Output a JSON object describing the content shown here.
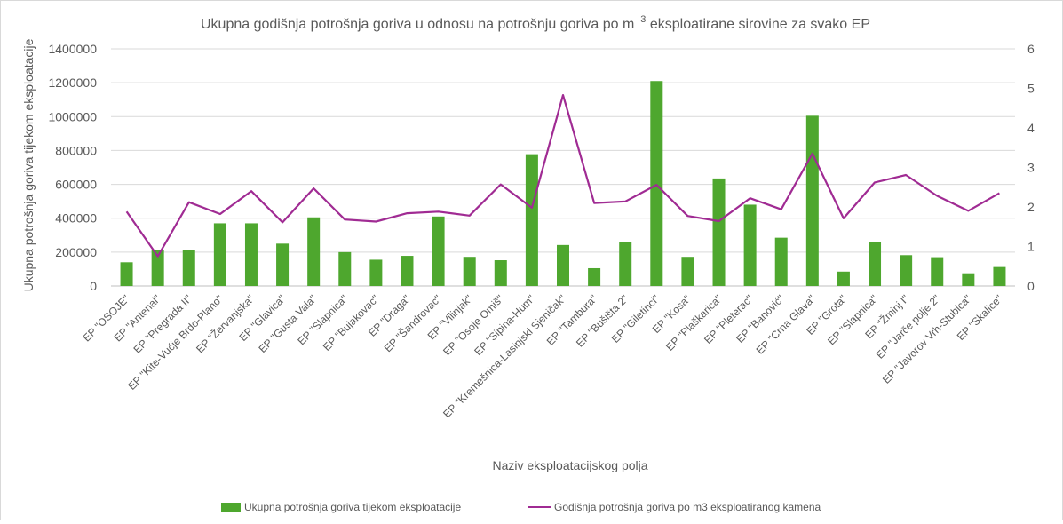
{
  "chart_data": {
    "type": "bar",
    "title": "Ukupna godišnja potrošnja goriva u odnosu na potrošnju goriva po m",
    "title_superscript": "3",
    "title_suffix": " eksploatirane sirovine za svako EP",
    "xlabel": "Naziv eksploatacijskog polja",
    "ylabel": "Ukupna potrošnja goriva tijekom eksploatacije",
    "ylim": [
      0,
      1400000
    ],
    "y2lim": [
      0,
      6
    ],
    "yticks": [
      "0",
      "200000",
      "400000",
      "600000",
      "800000",
      "1000000",
      "1200000",
      "1400000"
    ],
    "y2ticks": [
      "0",
      "1",
      "2",
      "3",
      "4",
      "5",
      "6"
    ],
    "grid": true,
    "legend_position": "bottom",
    "categories": [
      "EP \"OSOJE\"",
      "EP \"Antenal\"",
      "EP \"Pregrada II\"",
      "EP \"Kite-Vučje Brdo-Plano\"",
      "EP \"Žervanjska\"",
      "EP \"Glavica\"",
      "EP \"Gusta Vala\"",
      "EP \"Slapnica\"",
      "EP \"Bujakovac\"",
      "EP \"Draga\"",
      "EP \"Šandrovac\"",
      "EP \"Vilinjak\"",
      "EP \"Osoje Omiš\"",
      "EP \"Sipina-Hum\"",
      "EP \"Kremešnica-Lasinjski Sjeničak\"",
      "EP \"Tambura\"",
      "EP \"Bušišta 2\"",
      "EP \"Giletinci\"",
      "EP \"Kosa\"",
      "EP \"Plaškarica\"",
      "EP \"Pleterac\"",
      "EP \"Banović\"",
      "EP \"Crna Glava\"",
      "EP \"Grota\"",
      "EP \"Slapnica\"",
      "EP \"Žminj I\"",
      "EP \"Jarče polje 2\"",
      "EP \"Javorov Vrh-Stubica\"",
      "EP \"Skalice\""
    ],
    "series": [
      {
        "name": "Ukupna potrošnja goriva tijekom eksploatacije",
        "type": "bar",
        "axis": "left",
        "color": "#4ea72e",
        "values": [
          140000,
          215000,
          210000,
          370000,
          370000,
          250000,
          405000,
          200000,
          155000,
          178000,
          410000,
          172000,
          152000,
          778000,
          242000,
          105000,
          262000,
          1210000,
          172000,
          635000,
          480000,
          285000,
          1005000,
          85000,
          258000,
          182000,
          170000,
          75000,
          112000
        ]
      },
      {
        "name": "Godišnja potrošnja goriva po m3 eksploatiranog kamena",
        "type": "line",
        "axis": "right",
        "color": "#a02b93",
        "values": [
          1.88,
          0.75,
          2.12,
          1.82,
          2.4,
          1.61,
          2.47,
          1.68,
          1.63,
          1.84,
          1.88,
          1.78,
          2.57,
          1.98,
          4.83,
          2.1,
          2.14,
          2.56,
          1.77,
          1.64,
          2.22,
          1.94,
          3.35,
          1.71,
          2.62,
          2.81,
          2.28,
          1.9,
          2.35
        ]
      }
    ]
  }
}
